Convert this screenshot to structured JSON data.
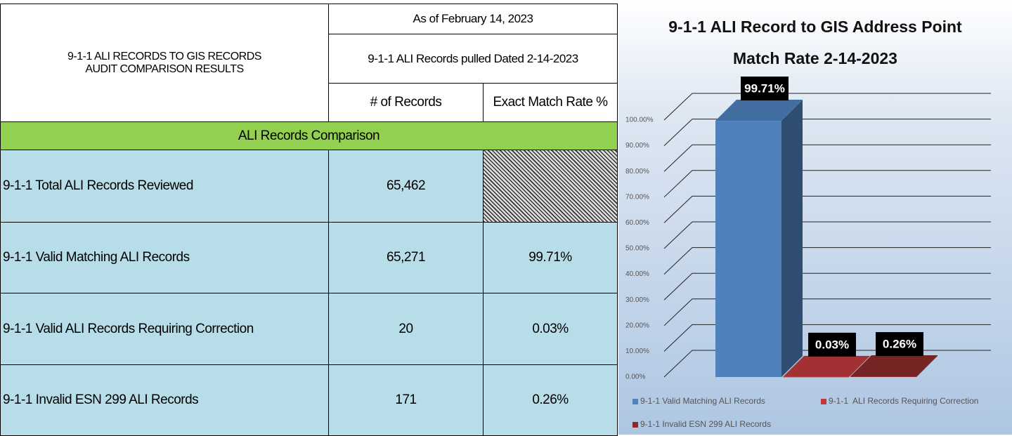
{
  "header": {
    "title": [
      "9-1-1 ALI RECORDS TO GIS RECORDS",
      "AUDIT COMPARISON RESULTS"
    ],
    "date": "As of February 14, 2023",
    "pulled": "9-1-1 ALI Records pulled Dated 2-14-2023",
    "columns": [
      "# of Records",
      "Exact Match Rate %"
    ]
  },
  "table": {
    "section": "ALI Records Comparison",
    "rows": [
      {
        "label": "9-1-1 Total ALI Records Reviewed",
        "records": "65,462"
      },
      {
        "label": "9-1-1 Valid Matching ALI Records",
        "records": "65,271",
        "rate": "99.71%"
      },
      {
        "label": "9-1-1 Valid ALI Records Requiring Correction",
        "records": "20",
        "rate": "0.03%"
      },
      {
        "label": "9-1-1 Invalid ESN 299 ALI Records",
        "records": "171",
        "rate": "0.26%"
      }
    ]
  },
  "chart_data": {
    "type": "bar",
    "title": [
      "9-1-1 ALI Record to GIS Address Point",
      "Match Rate 2-14-2023"
    ],
    "series": [
      {
        "name": "9-1-1 Valid Matching ALI Records",
        "color": "#4f81bd",
        "values": [
          99.71
        ],
        "value_labels": [
          "99.71%"
        ]
      },
      {
        "name": "9-1-1  ALI Records Requiring Correction",
        "color": "#c0393b",
        "values": [
          0.03
        ],
        "value_labels": [
          "0.03%"
        ]
      },
      {
        "name": "9-1-1 Invalid ESN 299 ALI Records",
        "color": "#8b2a2a",
        "values": [
          0.26
        ],
        "value_labels": [
          "0.26%"
        ]
      }
    ],
    "ylim": [
      0,
      100
    ],
    "yticks": [
      {
        "value": 0,
        "label": "0.00%"
      },
      {
        "value": 10,
        "label": "10.00%"
      },
      {
        "value": 20,
        "label": "20.00%"
      },
      {
        "value": 30,
        "label": "30.00%"
      },
      {
        "value": 40,
        "label": "40.00%"
      },
      {
        "value": 50,
        "label": "50.00%"
      },
      {
        "value": 60,
        "label": "60.00%"
      },
      {
        "value": 70,
        "label": "70.00%"
      },
      {
        "value": 80,
        "label": "80.00%"
      },
      {
        "value": 90,
        "label": "90.00%"
      },
      {
        "value": 100,
        "label": "100.00%"
      }
    ],
    "grid": true
  }
}
